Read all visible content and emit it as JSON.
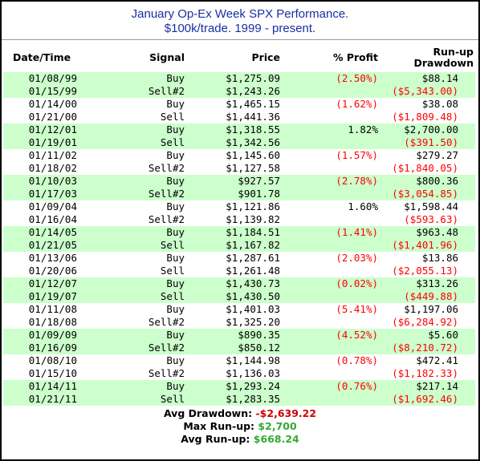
{
  "title": {
    "line1": "January Op-Ex Week SPX Performance.",
    "line2": "$100k/trade. 1999 - present."
  },
  "headers": {
    "date": "Date/Time",
    "signal": "Signal",
    "price": "Price",
    "profit": "% Profit",
    "runup": "Run-up",
    "drawdown": "Drawdown"
  },
  "colors": {
    "title": "#1a2fa0",
    "row_highlight": "#ccffcc",
    "negative": "#ff0000",
    "avg_drawdown_value": "#cc0000",
    "runup_value": "#33aa33"
  },
  "trades": [
    {
      "entry_date": "01/08/99",
      "entry_signal": "Buy",
      "entry_price": "$1,275.09",
      "profit": "(2.50%)",
      "runup": "$88.14",
      "exit_date": "01/15/99",
      "exit_signal": "Sell#2",
      "exit_price": "$1,243.26",
      "drawdown": "($5,343.00)"
    },
    {
      "entry_date": "01/14/00",
      "entry_signal": "Buy",
      "entry_price": "$1,465.15",
      "profit": "(1.62%)",
      "runup": "$38.08",
      "exit_date": "01/21/00",
      "exit_signal": "Sell",
      "exit_price": "$1,441.36",
      "drawdown": "($1,809.48)"
    },
    {
      "entry_date": "01/12/01",
      "entry_signal": "Buy",
      "entry_price": "$1,318.55",
      "profit": "1.82%",
      "runup": "$2,700.00",
      "exit_date": "01/19/01",
      "exit_signal": "Sell",
      "exit_price": "$1,342.56",
      "drawdown": "($391.50)"
    },
    {
      "entry_date": "01/11/02",
      "entry_signal": "Buy",
      "entry_price": "$1,145.60",
      "profit": "(1.57%)",
      "runup": "$279.27",
      "exit_date": "01/18/02",
      "exit_signal": "Sell#2",
      "exit_price": "$1,127.58",
      "drawdown": "($1,840.05)"
    },
    {
      "entry_date": "01/10/03",
      "entry_signal": "Buy",
      "entry_price": "$927.57",
      "profit": "(2.78%)",
      "runup": "$800.36",
      "exit_date": "01/17/03",
      "exit_signal": "Sell#2",
      "exit_price": "$901.78",
      "drawdown": "($3,054.85)"
    },
    {
      "entry_date": "01/09/04",
      "entry_signal": "Buy",
      "entry_price": "$1,121.86",
      "profit": "1.60%",
      "runup": "$1,598.44",
      "exit_date": "01/16/04",
      "exit_signal": "Sell#2",
      "exit_price": "$1,139.82",
      "drawdown": "($593.63)"
    },
    {
      "entry_date": "01/14/05",
      "entry_signal": "Buy",
      "entry_price": "$1,184.51",
      "profit": "(1.41%)",
      "runup": "$963.48",
      "exit_date": "01/21/05",
      "exit_signal": "Sell",
      "exit_price": "$1,167.82",
      "drawdown": "($1,401.96)"
    },
    {
      "entry_date": "01/13/06",
      "entry_signal": "Buy",
      "entry_price": "$1,287.61",
      "profit": "(2.03%)",
      "runup": "$13.86",
      "exit_date": "01/20/06",
      "exit_signal": "Sell",
      "exit_price": "$1,261.48",
      "drawdown": "($2,055.13)"
    },
    {
      "entry_date": "01/12/07",
      "entry_signal": "Buy",
      "entry_price": "$1,430.73",
      "profit": "(0.02%)",
      "runup": "$313.26",
      "exit_date": "01/19/07",
      "exit_signal": "Sell",
      "exit_price": "$1,430.50",
      "drawdown": "($449.88)"
    },
    {
      "entry_date": "01/11/08",
      "entry_signal": "Buy",
      "entry_price": "$1,401.03",
      "profit": "(5.41%)",
      "runup": "$1,197.06",
      "exit_date": "01/18/08",
      "exit_signal": "Sell#2",
      "exit_price": "$1,325.20",
      "drawdown": "($6,284.92)"
    },
    {
      "entry_date": "01/09/09",
      "entry_signal": "Buy",
      "entry_price": "$890.35",
      "profit": "(4.52%)",
      "runup": "$5.60",
      "exit_date": "01/16/09",
      "exit_signal": "Sell#2",
      "exit_price": "$850.12",
      "drawdown": "($8,210.72)"
    },
    {
      "entry_date": "01/08/10",
      "entry_signal": "Buy",
      "entry_price": "$1,144.98",
      "profit": "(0.78%)",
      "runup": "$472.41",
      "exit_date": "01/15/10",
      "exit_signal": "Sell#2",
      "exit_price": "$1,136.03",
      "drawdown": "($1,182.33)"
    },
    {
      "entry_date": "01/14/11",
      "entry_signal": "Buy",
      "entry_price": "$1,293.24",
      "profit": "(0.76%)",
      "runup": "$217.14",
      "exit_date": "01/21/11",
      "exit_signal": "Sell",
      "exit_price": "$1,283.35",
      "drawdown": "($1,692.46)"
    }
  ],
  "summary": {
    "avg_drawdown_label": "Avg Drawdown:",
    "avg_drawdown_value": "-$2,639.22",
    "max_runup_label": "Max Run-up:",
    "max_runup_value": "$2,700",
    "avg_runup_label": "Avg Run-up:",
    "avg_runup_value": "$668.24"
  }
}
